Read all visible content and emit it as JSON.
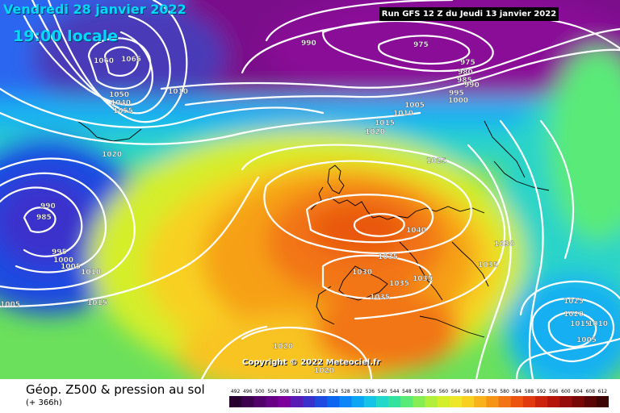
{
  "header": {
    "date": "Vendredi 28 janvier 2022",
    "local_time": "19:00 locale",
    "run": "Run GFS 12 Z du Jeudi 13 janvier 2022"
  },
  "footer": {
    "title": "Géop. Z500 & pression au sol",
    "lead_time": "(+ 366h)"
  },
  "copyright": "Copyright © 2022 Meteociel.fr",
  "colors": {
    "low": "#7a0d8a",
    "mid": "#2bd4c8",
    "high": "#e8570f",
    "isobar": "#ffffff"
  },
  "scale": {
    "labels": [
      "492",
      "496",
      "500",
      "504",
      "508",
      "512",
      "516",
      "520",
      "524",
      "528",
      "532",
      "536",
      "540",
      "544",
      "548",
      "552",
      "556",
      "560",
      "564",
      "568",
      "572",
      "576",
      "580",
      "584",
      "588",
      "592",
      "596",
      "600",
      "604",
      "608",
      "612"
    ],
    "colors": [
      "#280030",
      "#3c004e",
      "#52006a",
      "#680086",
      "#7e009c",
      "#5a1ab4",
      "#3a30cc",
      "#1e4ae0",
      "#0a66f0",
      "#0a86f8",
      "#0aa6f4",
      "#14c4e6",
      "#22d8c8",
      "#34e2a0",
      "#5aea78",
      "#86ee54",
      "#b0f03a",
      "#d4ee2c",
      "#eee628",
      "#f8d022",
      "#f8b21c",
      "#f69418",
      "#f27414",
      "#ec5410",
      "#e03a0e",
      "#cc240c",
      "#b4140a",
      "#960c0a",
      "#780808",
      "#5a0606",
      "#3c0404"
    ]
  },
  "pressure_labels": [
    "1060",
    "1065",
    "1050",
    "1040",
    "1055",
    "1010",
    "990",
    "975",
    "975",
    "980",
    "985",
    "990",
    "995",
    "1000",
    "1005",
    "1010",
    "1015",
    "1020",
    "1020",
    "1025",
    "990",
    "985",
    "995",
    "1000",
    "1005",
    "1010",
    "1005",
    "1015",
    "1040",
    "1035",
    "1030",
    "1035",
    "1035",
    "1035",
    "1030",
    "1035",
    "1020",
    "1020",
    "1025",
    "1020",
    "1015",
    "1010",
    "1005"
  ]
}
